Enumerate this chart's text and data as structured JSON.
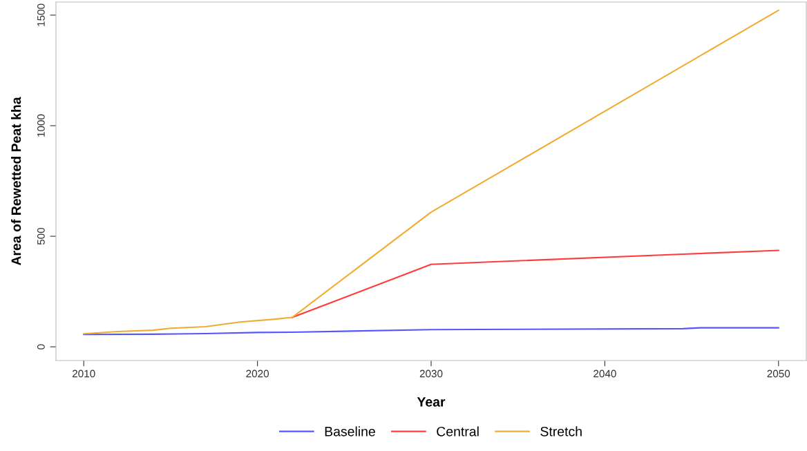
{
  "chart_data": {
    "type": "line",
    "xlabel": "Year",
    "ylabel": "Area of Rewetted Peat kha",
    "xlim": [
      2008.4,
      2051.6
    ],
    "ylim": [
      -62,
      1559
    ],
    "xticks": [
      2010,
      2020,
      2030,
      2040,
      2050
    ],
    "yticks": [
      0,
      500,
      1000,
      1500
    ],
    "grid": false,
    "legend": "bottom",
    "line_style": "solid",
    "marker": "none",
    "series": [
      {
        "name": "Baseline",
        "color": "#5555ff",
        "x": [
          2010,
          2014,
          2017,
          2020,
          2022,
          2030,
          2044.5,
          2045.5,
          2050
        ],
        "values": [
          56,
          57,
          60,
          65,
          66,
          78,
          82,
          86,
          86
        ]
      },
      {
        "name": "Central",
        "color": "#ff3b3b",
        "x": [
          2022,
          2030,
          2044.5,
          2050
        ],
        "values": [
          133,
          373,
          419,
          436
        ]
      },
      {
        "name": "Stretch",
        "color": "#f0ac30",
        "x": [
          2010,
          2012,
          2014,
          2015,
          2017,
          2019,
          2021,
          2022,
          2030,
          2050
        ],
        "values": [
          59,
          69,
          75,
          84,
          91,
          112,
          125,
          133,
          609,
          1522
        ]
      }
    ]
  }
}
